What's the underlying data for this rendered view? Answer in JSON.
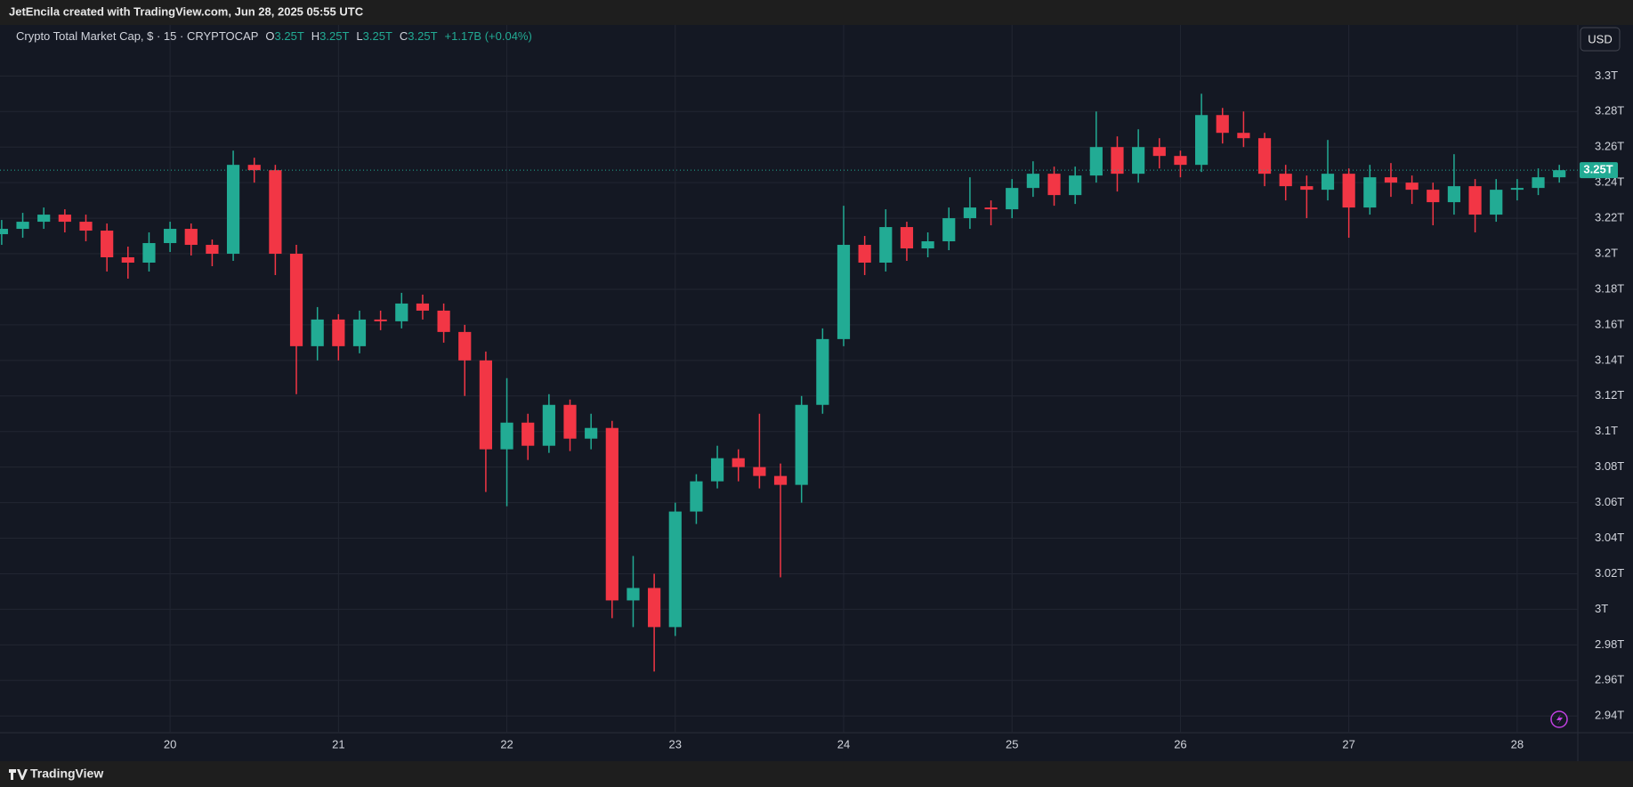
{
  "header": {
    "text": "JetEncila created with TradingView.com, Jun 28, 2025 05:55 UTC"
  },
  "footer": {
    "brand": "TradingView"
  },
  "chart_data": {
    "type": "candlestick",
    "legend": {
      "name": "Crypto Total Market Cap, $ · 15 · CRYPTOCAP",
      "items": [
        {
          "key": "O",
          "value": "3.25T"
        },
        {
          "key": "H",
          "value": "3.25T"
        },
        {
          "key": "L",
          "value": "3.25T"
        },
        {
          "key": "C",
          "value": "3.25T"
        }
      ],
      "change": "+1.17B (+0.04%)"
    },
    "currency": "USD",
    "last_price": {
      "value": 3.247,
      "label": "3.25T"
    },
    "up_color": "#22ab94",
    "down_color": "#f23645",
    "grid": true,
    "xlim": [
      18.99,
      28.36
    ],
    "xticks": [
      20,
      21,
      22,
      23,
      24,
      25,
      26,
      27,
      28
    ],
    "ylim": [
      2.9306,
      3.3287
    ],
    "yticks": [
      {
        "value": 2.94,
        "label": "2.94T"
      },
      {
        "value": 2.96,
        "label": "2.96T"
      },
      {
        "value": 2.98,
        "label": "2.98T"
      },
      {
        "value": 3,
        "label": "3T"
      },
      {
        "value": 3.02,
        "label": "3.02T"
      },
      {
        "value": 3.04,
        "label": "3.04T"
      },
      {
        "value": 3.06,
        "label": "3.06T"
      },
      {
        "value": 3.08,
        "label": "3.08T"
      },
      {
        "value": 3.1,
        "label": "3.1T"
      },
      {
        "value": 3.12,
        "label": "3.12T"
      },
      {
        "value": 3.14,
        "label": "3.14T"
      },
      {
        "value": 3.16,
        "label": "3.16T"
      },
      {
        "value": 3.18,
        "label": "3.18T"
      },
      {
        "value": 3.2,
        "label": "3.2T"
      },
      {
        "value": 3.22,
        "label": "3.22T"
      },
      {
        "value": 3.24,
        "label": "3.24T"
      },
      {
        "value": 3.26,
        "label": "3.26T"
      },
      {
        "value": 3.28,
        "label": "3.28T"
      },
      {
        "value": 3.3,
        "label": "3.3T"
      }
    ],
    "x": [
      19,
      19.125,
      19.25,
      19.375,
      19.5,
      19.625,
      19.75,
      19.875,
      20,
      20.125,
      20.25,
      20.375,
      20.5,
      20.625,
      20.75,
      20.875,
      21,
      21.125,
      21.25,
      21.375,
      21.5,
      21.625,
      21.75,
      21.875,
      22,
      22.125,
      22.25,
      22.375,
      22.5,
      22.625,
      22.75,
      22.875,
      23,
      23.125,
      23.25,
      23.375,
      23.5,
      23.625,
      23.75,
      23.875,
      24,
      24.125,
      24.25,
      24.375,
      24.5,
      24.625,
      24.75,
      24.875,
      25,
      25.125,
      25.25,
      25.375,
      25.5,
      25.625,
      25.75,
      25.875,
      26,
      26.125,
      26.25,
      26.375,
      26.5,
      26.625,
      26.75,
      26.875,
      27,
      27.125,
      27.25,
      27.375,
      27.5,
      27.625,
      27.75,
      27.875,
      28,
      28.125,
      28.25
    ],
    "open": [
      3.211,
      3.214,
      3.218,
      3.222,
      3.218,
      3.213,
      3.198,
      3.195,
      3.206,
      3.214,
      3.205,
      3.2,
      3.25,
      3.247,
      3.2,
      3.148,
      3.163,
      3.148,
      3.163,
      3.162,
      3.172,
      3.168,
      3.156,
      3.14,
      3.09,
      3.105,
      3.092,
      3.115,
      3.096,
      3.102,
      3.005,
      3.012,
      2.99,
      3.055,
      3.072,
      3.085,
      3.08,
      3.075,
      3.07,
      3.115,
      3.152,
      3.205,
      3.195,
      3.215,
      3.203,
      3.207,
      3.22,
      3.226,
      3.225,
      3.237,
      3.245,
      3.233,
      3.244,
      3.26,
      3.245,
      3.26,
      3.255,
      3.25,
      3.278,
      3.268,
      3.265,
      3.245,
      3.238,
      3.236,
      3.245,
      3.226,
      3.243,
      3.24,
      3.236,
      3.229,
      3.238,
      3.222,
      3.236,
      3.237,
      3.243
    ],
    "high": [
      3.219,
      3.223,
      3.226,
      3.225,
      3.222,
      3.217,
      3.204,
      3.212,
      3.218,
      3.217,
      3.208,
      3.258,
      3.254,
      3.25,
      3.205,
      3.17,
      3.166,
      3.168,
      3.168,
      3.178,
      3.177,
      3.172,
      3.16,
      3.145,
      3.13,
      3.11,
      3.121,
      3.118,
      3.11,
      3.106,
      3.03,
      3.02,
      3.06,
      3.076,
      3.092,
      3.09,
      3.11,
      3.082,
      3.12,
      3.158,
      3.227,
      3.21,
      3.225,
      3.218,
      3.212,
      3.226,
      3.243,
      3.23,
      3.242,
      3.252,
      3.249,
      3.249,
      3.28,
      3.266,
      3.27,
      3.265,
      3.258,
      3.29,
      3.282,
      3.28,
      3.268,
      3.25,
      3.244,
      3.264,
      3.248,
      3.25,
      3.251,
      3.244,
      3.24,
      3.256,
      3.242,
      3.242,
      3.242,
      3.248,
      3.25
    ],
    "low": [
      3.205,
      3.209,
      3.214,
      3.212,
      3.207,
      3.19,
      3.186,
      3.19,
      3.201,
      3.199,
      3.193,
      3.196,
      3.24,
      3.188,
      3.121,
      3.14,
      3.14,
      3.144,
      3.157,
      3.158,
      3.163,
      3.15,
      3.12,
      3.066,
      3.058,
      3.084,
      3.088,
      3.089,
      3.09,
      2.995,
      2.99,
      2.965,
      2.985,
      3.048,
      3.068,
      3.072,
      3.068,
      3.018,
      3.06,
      3.11,
      3.148,
      3.188,
      3.19,
      3.196,
      3.198,
      3.202,
      3.214,
      3.216,
      3.22,
      3.232,
      3.227,
      3.228,
      3.24,
      3.235,
      3.24,
      3.248,
      3.243,
      3.246,
      3.262,
      3.26,
      3.238,
      3.23,
      3.22,
      3.23,
      3.209,
      3.222,
      3.232,
      3.228,
      3.216,
      3.222,
      3.212,
      3.218,
      3.23,
      3.233,
      3.24
    ],
    "close": [
      3.214,
      3.218,
      3.222,
      3.218,
      3.213,
      3.198,
      3.195,
      3.206,
      3.214,
      3.205,
      3.2,
      3.25,
      3.247,
      3.2,
      3.148,
      3.163,
      3.148,
      3.163,
      3.162,
      3.172,
      3.168,
      3.156,
      3.14,
      3.09,
      3.105,
      3.092,
      3.115,
      3.096,
      3.102,
      3.005,
      3.012,
      2.99,
      3.055,
      3.072,
      3.085,
      3.08,
      3.075,
      3.07,
      3.115,
      3.152,
      3.205,
      3.195,
      3.215,
      3.203,
      3.207,
      3.22,
      3.226,
      3.225,
      3.237,
      3.245,
      3.233,
      3.244,
      3.26,
      3.245,
      3.26,
      3.255,
      3.25,
      3.278,
      3.268,
      3.265,
      3.245,
      3.238,
      3.236,
      3.245,
      3.226,
      3.243,
      3.24,
      3.236,
      3.229,
      3.238,
      3.222,
      3.236,
      3.237,
      3.243,
      3.247
    ]
  }
}
